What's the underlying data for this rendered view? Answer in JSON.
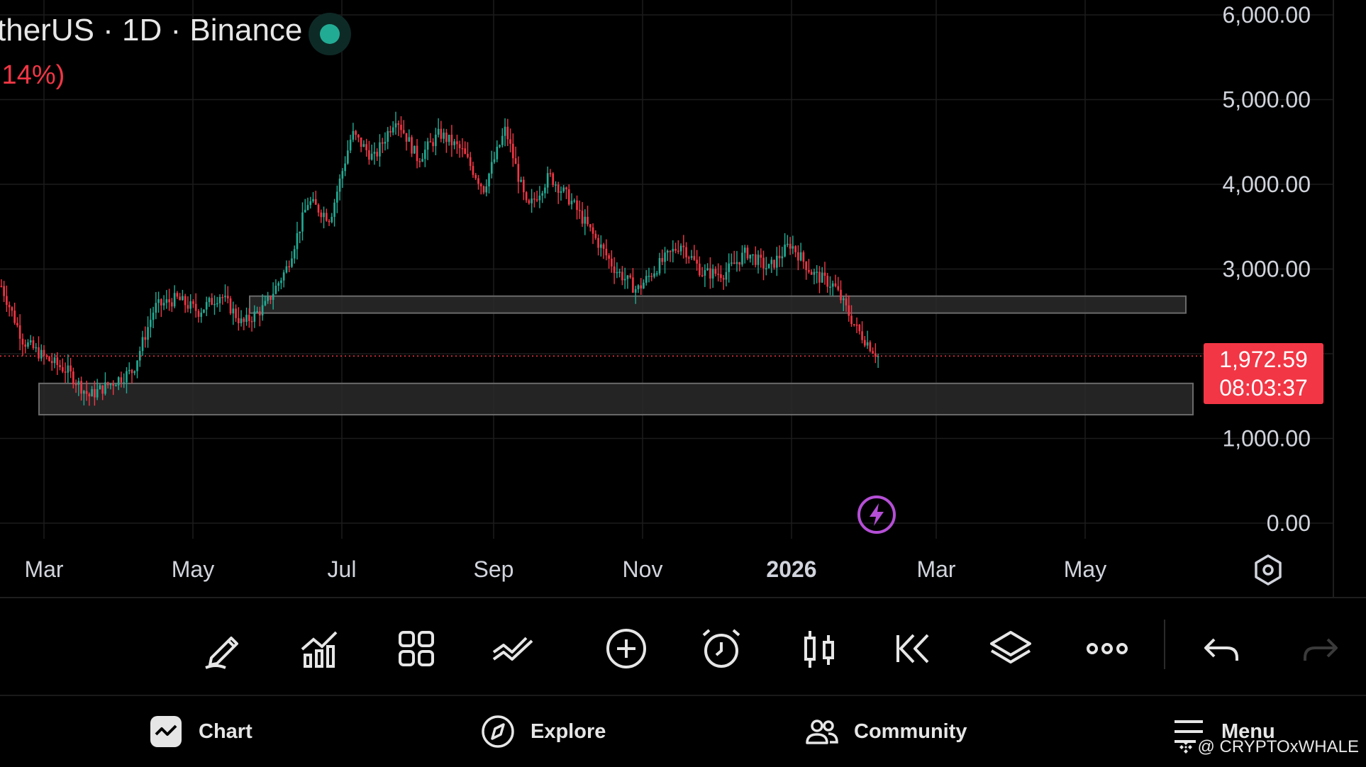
{
  "header": {
    "title": "therUS · 1D · Binance",
    "change": ".14%)"
  },
  "price_tag": {
    "price": "1,972.59",
    "countdown": "08:03:37"
  },
  "colors": {
    "up": "#22ab94",
    "down": "#f23645",
    "background": "#000000",
    "grid": "#1c1c1c",
    "zone_fill": "#2a2a2a",
    "zone_border": "#6a6a6a",
    "accent_purple": "#b54fd6"
  },
  "chart_data": {
    "type": "candlestick",
    "title": "therUS · 1D · Binance",
    "yticks": [
      "6,000.00",
      "5,000.00",
      "4,000.00",
      "3,000.00",
      "1,000.00",
      "0.00"
    ],
    "ytick_values": [
      6000,
      5000,
      4000,
      3000,
      1000,
      0
    ],
    "ylim": [
      0,
      6100
    ],
    "xticks": [
      "Mar",
      "May",
      "Jul",
      "Sep",
      "Nov",
      "2026",
      "Mar",
      "May"
    ],
    "grid": true,
    "last_price": 1972.59,
    "zones": [
      {
        "low": 2480,
        "high": 2680
      },
      {
        "low": 1280,
        "high": 1650
      }
    ],
    "close_path": [
      [
        "Feb 2025",
        2800
      ],
      [
        "Mar 2025",
        2150
      ],
      [
        "Mar 2025",
        1950
      ],
      [
        "Apr 2025",
        1800
      ],
      [
        "Apr 2025",
        1500
      ],
      [
        "Apr 2025",
        1650
      ],
      [
        "May 2025",
        1800
      ],
      [
        "May 2025",
        2550
      ],
      [
        "Jun 2025",
        2650
      ],
      [
        "Jun 2025",
        2500
      ],
      [
        "Jun 2025",
        2700
      ],
      [
        "Jun 2025",
        2350
      ],
      [
        "Jul 2025",
        2550
      ],
      [
        "Jul 2025",
        3000
      ],
      [
        "Jul 2025",
        3800
      ],
      [
        "Aug 2025",
        3600
      ],
      [
        "Aug 2025",
        4600
      ],
      [
        "Aug 2025",
        4300
      ],
      [
        "Aug 2025",
        4800
      ],
      [
        "Sep 2025",
        4300
      ],
      [
        "Sep 2025",
        4600
      ],
      [
        "Sep 2025",
        4400
      ],
      [
        "Oct 2025",
        3950
      ],
      [
        "Oct 2025",
        4650
      ],
      [
        "Oct 2025",
        3700
      ],
      [
        "Oct 2025",
        4100
      ],
      [
        "Oct 2025",
        3800
      ],
      [
        "Nov 2025",
        3400
      ],
      [
        "Nov 2025",
        3000
      ],
      [
        "Nov 2025",
        2750
      ],
      [
        "Dec 2025",
        3050
      ],
      [
        "Dec 2025",
        3300
      ],
      [
        "Dec 2025",
        2950
      ],
      [
        "Dec 2025",
        2950
      ],
      [
        "Jan 2026",
        3200
      ],
      [
        "Jan 2026",
        3000
      ],
      [
        "Jan 2026",
        3300
      ],
      [
        "Jan 2026",
        2950
      ],
      [
        "Feb 2026",
        2800
      ],
      [
        "Feb 2026",
        2300
      ],
      [
        "Feb 2026",
        1972.59
      ]
    ]
  },
  "toolbar": {
    "icons": [
      "pencil-icon",
      "indicators-icon",
      "templates-icon",
      "trend-icon",
      "add-icon",
      "alert-icon",
      "candles-icon",
      "replay-icon",
      "layers-icon",
      "more-icon",
      "undo-icon",
      "redo-icon"
    ]
  },
  "nav": {
    "chart": "Chart",
    "explore": "Explore",
    "community": "Community",
    "menu": "Menu"
  },
  "watermark": "@ CRYPTOxWHALE"
}
